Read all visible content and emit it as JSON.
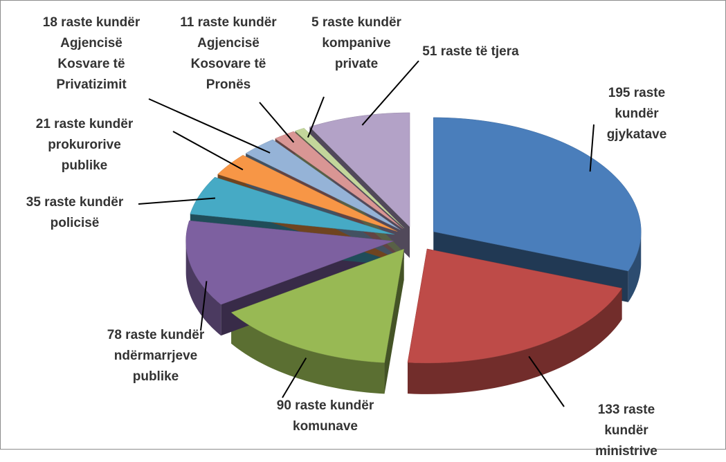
{
  "chart_data": {
    "type": "pie3d",
    "values": [
      195,
      133,
      90,
      78,
      35,
      21,
      18,
      11,
      5,
      51
    ],
    "value_labels": [
      "195 raste kundër\ngjykatave",
      "133 raste kundër\nministrive",
      "90 raste kundër\nkomunave",
      "78 raste kundër\nndërmarrjeve\npublike",
      "35 raste kundër\npolicisë",
      "21 raste kundër\nprokurorive\npublike",
      "18 raste kundër\nAgjencisë\nKosvare të\nPrivatizimit",
      "11 raste kundër\nAgjencisë\nKosovare  të\nPronës",
      "5 raste kundër\nkompanive\nprivate",
      "51 raste të tjera"
    ],
    "colors": [
      "#4a7ebb",
      "#be4b48",
      "#98b954",
      "#7d60a0",
      "#46aac5",
      "#f79646",
      "#95b3d7",
      "#d99694",
      "#c3d69b",
      "#b3a2c7"
    ]
  }
}
